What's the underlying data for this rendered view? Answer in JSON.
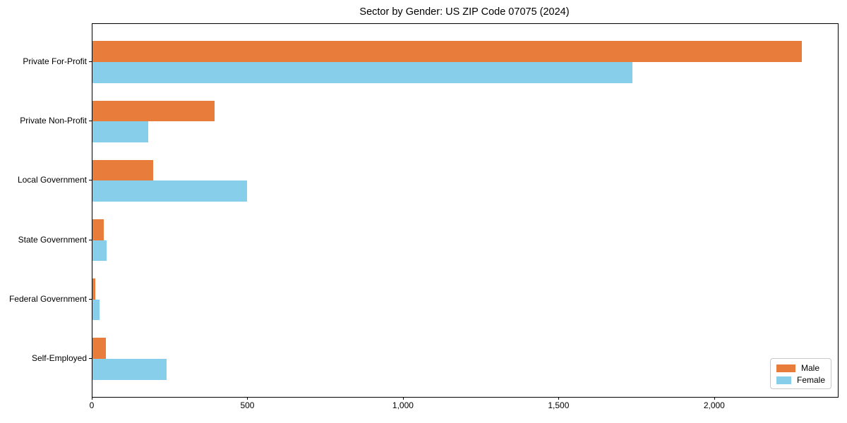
{
  "title": "Sector by Gender: US ZIP Code 07075 (2024)",
  "colors": {
    "male": "#e87c3a",
    "female": "#87ceeb",
    "axis": "#000000",
    "legend_border": "#c8c8c8",
    "background": "#ffffff"
  },
  "chart_data": {
    "type": "bar",
    "orientation": "horizontal",
    "title": "Sector by Gender: US ZIP Code 07075 (2024)",
    "xlabel": "",
    "ylabel": "",
    "categories": [
      "Private For-Profit",
      "Private Non-Profit",
      "Local Government",
      "State Government",
      "Federal Government",
      "Self-Employed"
    ],
    "series": [
      {
        "name": "Male",
        "color": "#e87c3a",
        "values": [
          2280,
          392,
          195,
          36,
          9,
          43
        ]
      },
      {
        "name": "Female",
        "color": "#87ceeb",
        "values": [
          1735,
          179,
          497,
          45,
          23,
          238
        ]
      }
    ],
    "xlim": [
      0,
      2395
    ],
    "xticks": [
      0,
      500,
      1000,
      1500,
      2000
    ],
    "xtick_labels": [
      "0",
      "500",
      "1,000",
      "1,500",
      "2,000"
    ],
    "grid": false,
    "legend": {
      "position": "lower right",
      "entries": [
        "Male",
        "Female"
      ]
    }
  }
}
